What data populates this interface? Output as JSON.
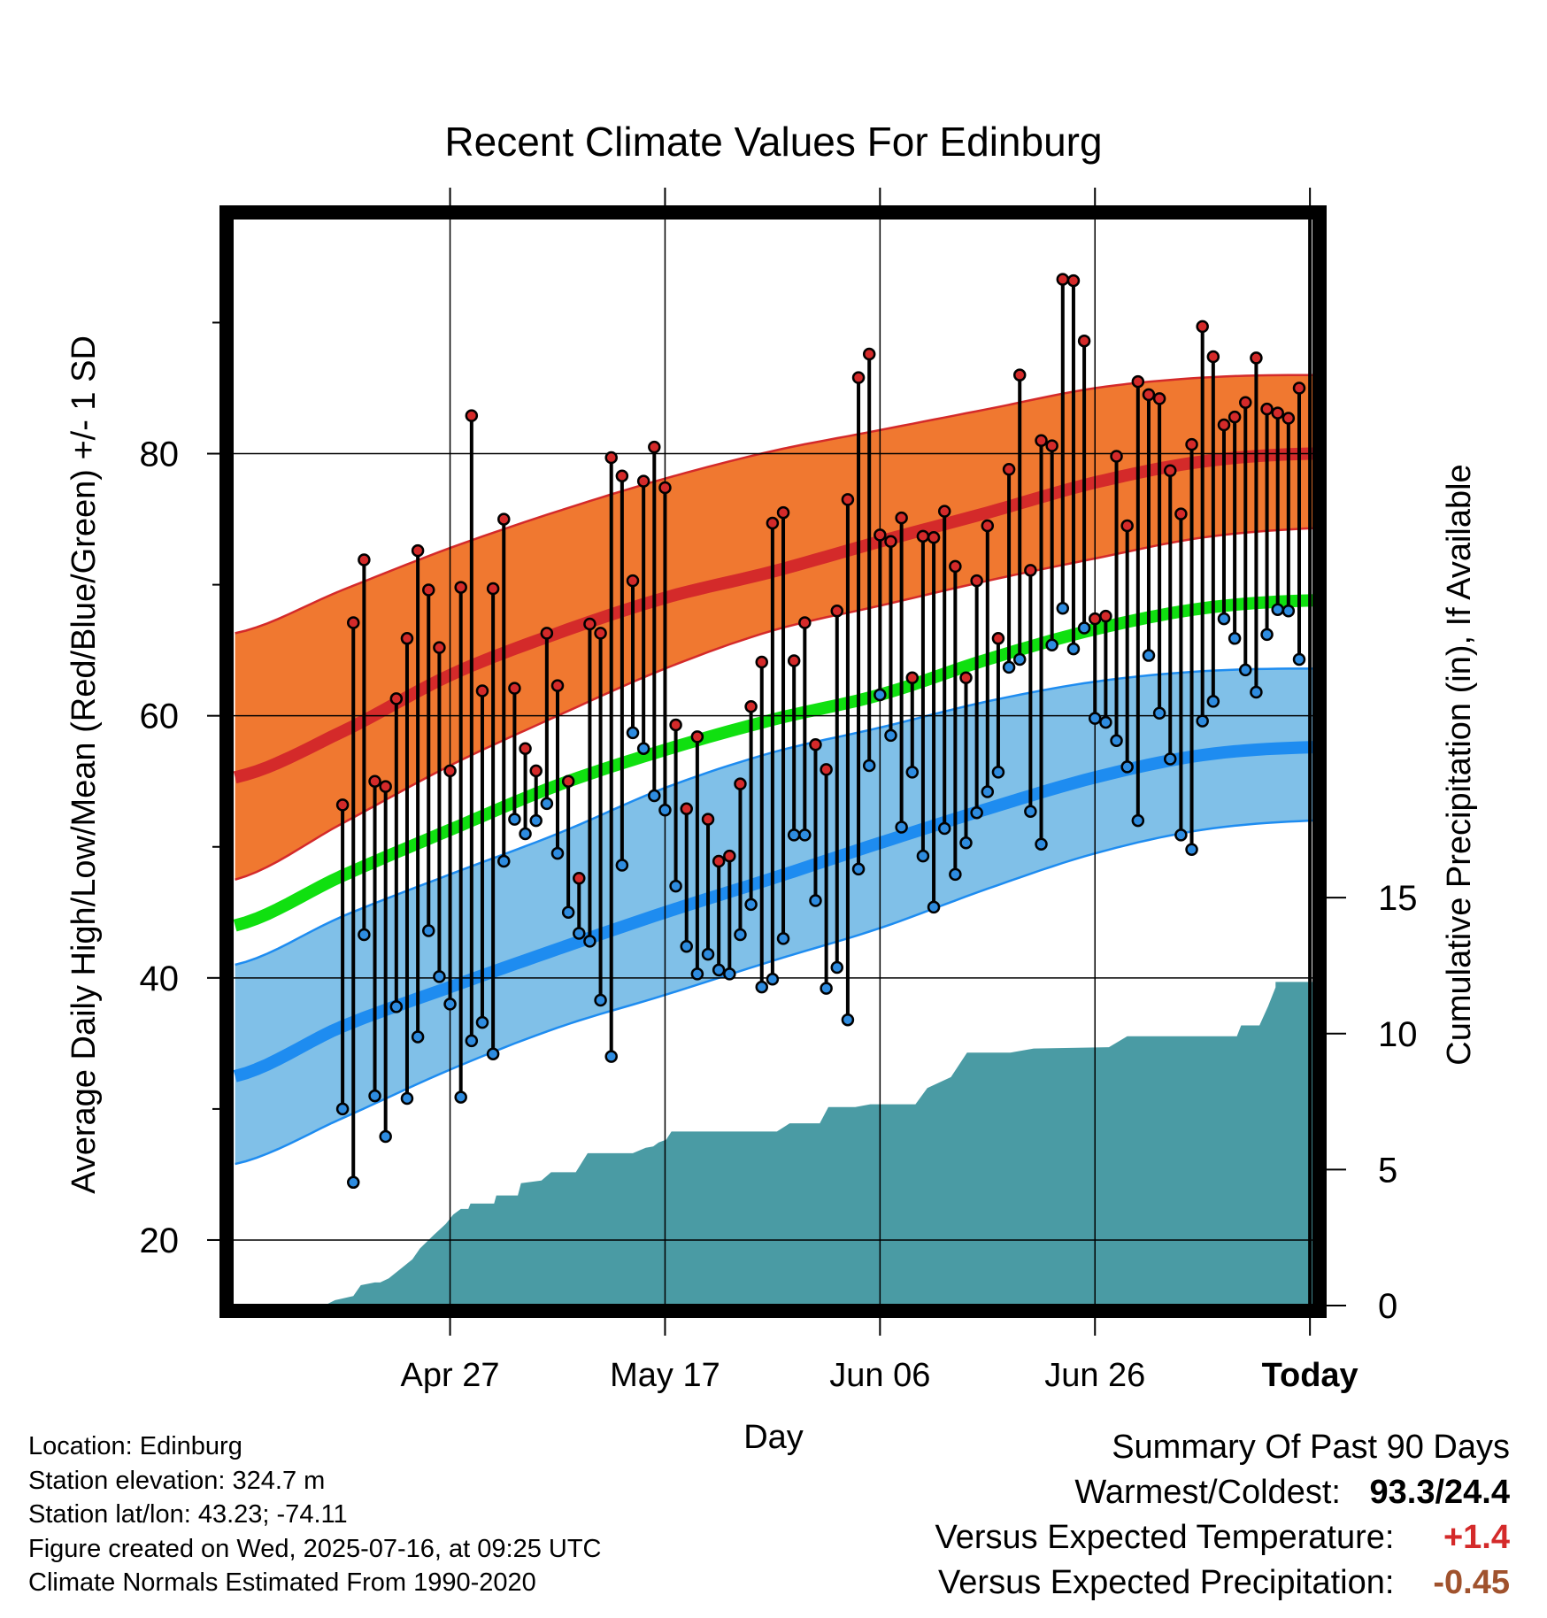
{
  "chart_data": {
    "type": "line",
    "title": "Recent Climate Values For Edinburg",
    "xlabel": "Day",
    "ylabel_left": "Average Daily High/Low/Mean (Red/Blue/Green) +/- 1 SD",
    "ylabel_right": "Cumulative Precipitation (in), If Available",
    "xlim": [
      -10.3,
      90.4
    ],
    "ylim_left": [
      15,
      98
    ],
    "ylim_right": [
      0,
      40
    ],
    "x_ticks": [
      {
        "day": 10,
        "label": "Apr 27"
      },
      {
        "day": 30,
        "label": "May 17"
      },
      {
        "day": 50,
        "label": "Jun 06"
      },
      {
        "day": 70,
        "label": "Jun 26"
      },
      {
        "day": 90,
        "label": "Today"
      }
    ],
    "y_ticks_left": [
      20,
      40,
      60,
      80
    ],
    "y_minor_ticks_left": [
      30,
      50,
      70,
      90
    ],
    "y_ticks_right": [
      0,
      5,
      10,
      15
    ],
    "today_label": "90\nDays",
    "grid": true,
    "colors": {
      "high_band": "#f07830",
      "high_mean": "#d42a2a",
      "low_band": "#80c0e8",
      "low_mean": "#1e8cf0",
      "mean_line": "#10e010",
      "precip": "#4a9ba4",
      "high_dot": "#d42a2a",
      "low_dot": "#2e8ce0",
      "versus_temp": "#d42a2a",
      "versus_precip": "#a0522d"
    },
    "normals": {
      "days": [
        -10,
        0,
        10,
        20,
        30,
        40,
        50,
        60,
        70,
        80,
        90,
        100
      ],
      "high_mean": [
        55.3,
        58.8,
        63.1,
        66.3,
        69.0,
        71.0,
        73.3,
        75.5,
        77.8,
        79.4,
        80.0,
        79.8
      ],
      "high_upper": [
        66.3,
        69.6,
        72.8,
        75.6,
        78.1,
        80.2,
        81.8,
        83.4,
        85.0,
        85.8,
        86.0,
        85.8
      ],
      "high_lower": [
        47.5,
        51.8,
        56.2,
        60.0,
        63.6,
        66.5,
        68.4,
        70.3,
        72.0,
        73.6,
        74.3,
        74.4
      ],
      "mean": [
        44.0,
        47.8,
        51.3,
        54.7,
        57.4,
        59.7,
        61.6,
        64.3,
        66.6,
        68.2,
        68.8,
        68.7
      ],
      "low_mean": [
        32.5,
        36.3,
        39.3,
        42.2,
        45.0,
        47.6,
        50.3,
        52.9,
        55.3,
        57.0,
        57.6,
        57.5
      ],
      "low_upper": [
        41.0,
        44.7,
        47.9,
        51.0,
        54.5,
        57.2,
        59.1,
        61.1,
        62.6,
        63.4,
        63.6,
        63.4
      ],
      "low_lower": [
        25.8,
        29.3,
        33.0,
        36.2,
        38.7,
        41.3,
        43.8,
        46.8,
        49.5,
        51.3,
        52.0,
        52.0
      ]
    },
    "series": [
      {
        "name": "High",
        "values": [
          53.2,
          67.1,
          71.9,
          55.0,
          54.6,
          61.3,
          65.9,
          72.6,
          69.6,
          65.2,
          55.8,
          69.8,
          82.9,
          61.9,
          69.7,
          75.0,
          62.1,
          57.5,
          55.8,
          66.3,
          62.3,
          55.0,
          47.6,
          67.0,
          66.3,
          79.7,
          78.3,
          70.3,
          77.9,
          80.5,
          77.4,
          59.3,
          52.9,
          58.4,
          52.1,
          48.9,
          49.3,
          54.8,
          60.7,
          64.1,
          74.7,
          75.5,
          64.2,
          67.1,
          57.8,
          55.9,
          68.0,
          76.5,
          85.8,
          87.6,
          73.8,
          73.3,
          75.1,
          62.9,
          73.7,
          73.6,
          75.6,
          71.4,
          62.9,
          70.3,
          74.5,
          65.9,
          78.8,
          86.0,
          71.1,
          81.0,
          80.6,
          93.3,
          93.2,
          88.6,
          67.4,
          67.6,
          79.8,
          74.5,
          85.5,
          84.5,
          84.2,
          78.7,
          75.4,
          80.7,
          89.7,
          87.4,
          82.2,
          82.8,
          83.9,
          87.3,
          83.4,
          83.1,
          82.7,
          85.0
        ]
      },
      {
        "name": "Low",
        "values": [
          30.0,
          24.4,
          43.3,
          31.0,
          27.9,
          37.8,
          30.8,
          35.5,
          43.6,
          40.1,
          38.0,
          30.9,
          35.2,
          36.6,
          34.2,
          48.9,
          52.1,
          51.0,
          52.0,
          53.3,
          49.5,
          45.0,
          43.4,
          42.8,
          38.3,
          34.0,
          48.6,
          58.7,
          57.5,
          53.9,
          52.8,
          47.0,
          42.4,
          40.3,
          41.8,
          40.6,
          40.3,
          43.3,
          45.6,
          39.3,
          39.9,
          43.0,
          50.9,
          50.9,
          45.9,
          39.2,
          40.8,
          36.8,
          48.3,
          56.2,
          61.6,
          58.5,
          51.5,
          55.7,
          49.3,
          45.4,
          51.4,
          47.9,
          50.3,
          52.6,
          54.2,
          55.7,
          63.7,
          64.3,
          52.7,
          50.2,
          65.4,
          68.2,
          65.1,
          66.7,
          59.8,
          59.5,
          58.1,
          56.1,
          52.0,
          64.6,
          60.2,
          56.7,
          50.9,
          49.8,
          59.6,
          61.1,
          67.4,
          65.9,
          63.5,
          61.8,
          66.2,
          68.1,
          68.0,
          64.3
        ]
      },
      {
        "name": "Cumulative Precipitation",
        "points": [
          [
            -1.7,
            0.0
          ],
          [
            -0.7,
            0.2
          ],
          [
            1,
            0.35
          ],
          [
            1.7,
            0.75
          ],
          [
            3,
            0.85
          ],
          [
            3.5,
            0.85
          ],
          [
            4.3,
            1.0
          ],
          [
            5.4,
            1.35
          ],
          [
            6.5,
            1.7
          ],
          [
            7.2,
            2.1
          ],
          [
            8.5,
            2.6
          ],
          [
            9.6,
            3.0
          ],
          [
            10.3,
            3.35
          ],
          [
            11.0,
            3.55
          ],
          [
            11.7,
            3.55
          ],
          [
            11.9,
            3.75
          ],
          [
            14.1,
            3.75
          ],
          [
            14.3,
            4.05
          ],
          [
            16.3,
            4.05
          ],
          [
            16.6,
            4.5
          ],
          [
            18.5,
            4.6
          ],
          [
            19.4,
            4.9
          ],
          [
            21.7,
            4.9
          ],
          [
            22.8,
            5.6
          ],
          [
            27.0,
            5.6
          ],
          [
            28.2,
            5.8
          ],
          [
            28.9,
            5.85
          ],
          [
            29.4,
            6.0
          ],
          [
            30.1,
            6.1
          ],
          [
            30.6,
            6.4
          ],
          [
            40.4,
            6.4
          ],
          [
            41.6,
            6.7
          ],
          [
            44.4,
            6.7
          ],
          [
            45.2,
            7.3
          ],
          [
            47.7,
            7.3
          ],
          [
            49.1,
            7.4
          ],
          [
            53.3,
            7.4
          ],
          [
            54.4,
            8.0
          ],
          [
            56.6,
            8.4
          ],
          [
            58.1,
            9.3
          ],
          [
            62.1,
            9.3
          ],
          [
            64.3,
            9.45
          ],
          [
            71.3,
            9.5
          ],
          [
            73.0,
            9.9
          ],
          [
            83.2,
            9.9
          ],
          [
            83.6,
            10.3
          ],
          [
            85.3,
            10.3
          ],
          [
            86.1,
            11.0
          ],
          [
            86.8,
            11.7
          ],
          [
            86.8,
            11.9
          ],
          [
            90.4,
            11.9
          ]
        ]
      }
    ]
  },
  "footer": {
    "location": "Location: Edinburg",
    "elevation": "Station elevation: 324.7 m",
    "latlon": "Station lat/lon: 43.23; -74.11",
    "created": "Figure created on Wed, 2025-07-16, at 09:25 UTC",
    "normals": "Climate Normals Estimated From 1990-2020"
  },
  "summary": {
    "heading": "Summary Of Past 90 Days",
    "warm_cold_label": "Warmest/Coldest:",
    "warm_cold_value": "93.3/24.4",
    "versus_temp_label": "Versus Expected Temperature:",
    "versus_temp_value": "+1.4",
    "versus_precip_label": "Versus Expected Precipitation:",
    "versus_precip_value": "-0.45"
  }
}
